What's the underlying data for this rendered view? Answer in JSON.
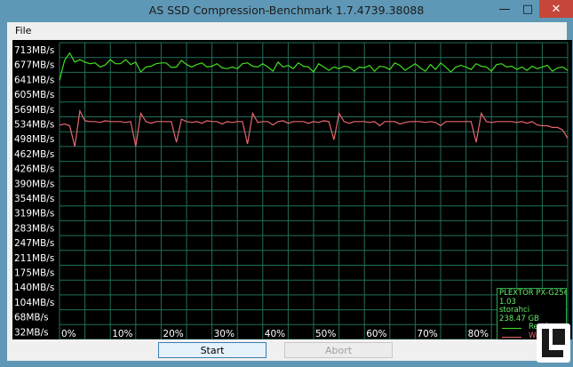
{
  "window": {
    "title": "AS SSD Compression-Benchmark 1.7.4739.38088"
  },
  "menu": {
    "file_label": "File"
  },
  "buttons": {
    "start_label": "Start",
    "abort_label": "Abort"
  },
  "device": {
    "name": "PLEXTOR PX-G256",
    "firmware": "1.03",
    "driver": "storahci",
    "size": "238.47 GB"
  },
  "legend": {
    "read_label": "Read",
    "write_label": "Write"
  },
  "colors": {
    "read": "#44dd22",
    "write": "#e8666e",
    "grid": "#1f6f5a",
    "background": "#000000"
  },
  "chart_data": {
    "type": "line",
    "ylabels": [
      "713MB/s",
      "677MB/s",
      "641MB/s",
      "605MB/s",
      "569MB/s",
      "534MB/s",
      "498MB/s",
      "462MB/s",
      "426MB/s",
      "390MB/s",
      "354MB/s",
      "319MB/s",
      "283MB/s",
      "247MB/s",
      "211MB/s",
      "175MB/s",
      "140MB/s",
      "104MB/s",
      "68MB/s",
      "32MB/s"
    ],
    "xlabels": [
      "0%",
      "10%",
      "20%",
      "30%",
      "40%",
      "50%",
      "60%",
      "70%",
      "80%"
    ],
    "xlim": [
      0,
      100
    ],
    "ylim": [
      13,
      731
    ],
    "series": [
      {
        "name": "Read",
        "x": [
          0,
          1,
          2,
          3,
          4,
          5,
          6,
          7,
          8,
          9,
          10,
          11,
          12,
          13,
          14,
          15,
          16,
          17,
          18,
          19,
          20,
          21,
          22,
          23,
          24,
          25,
          26,
          27,
          28,
          29,
          30,
          31,
          32,
          33,
          34,
          35,
          36,
          37,
          38,
          39,
          40,
          41,
          42,
          43,
          44,
          45,
          46,
          47,
          48,
          49,
          50,
          51,
          52,
          53,
          54,
          55,
          56,
          57,
          58,
          59,
          60,
          61,
          62,
          63,
          64,
          65,
          66,
          67,
          68,
          69,
          70,
          71,
          72,
          73,
          74,
          75,
          76,
          77,
          78,
          79,
          80,
          81,
          82,
          83,
          84,
          85,
          86,
          87,
          88,
          89,
          90,
          91,
          92,
          93,
          94,
          95,
          96,
          97,
          98,
          99,
          100
        ],
        "values": [
          640,
          688,
          706,
          684,
          690,
          684,
          680,
          682,
          672,
          677,
          690,
          680,
          680,
          690,
          678,
          684,
          660,
          672,
          674,
          680,
          682,
          682,
          671,
          672,
          688,
          678,
          672,
          678,
          682,
          672,
          674,
          680,
          670,
          668,
          672,
          668,
          680,
          682,
          674,
          672,
          680,
          672,
          662,
          684,
          672,
          676,
          668,
          682,
          674,
          672,
          660,
          680,
          672,
          664,
          672,
          668,
          674,
          672,
          662,
          672,
          670,
          676,
          662,
          674,
          672,
          666,
          682,
          676,
          664,
          672,
          680,
          670,
          662,
          678,
          666,
          682,
          672,
          660,
          672,
          676,
          672,
          666,
          680,
          674,
          672,
          662,
          678,
          680,
          672,
          674,
          666,
          672,
          664,
          674,
          668,
          672,
          676,
          662,
          670,
          672,
          664
        ]
      },
      {
        "name": "Write",
        "x": [
          0,
          1,
          2,
          3,
          4,
          5,
          6,
          7,
          8,
          9,
          10,
          11,
          12,
          13,
          14,
          15,
          16,
          17,
          18,
          19,
          20,
          21,
          22,
          23,
          24,
          25,
          26,
          27,
          28,
          29,
          30,
          31,
          32,
          33,
          34,
          35,
          36,
          37,
          38,
          39,
          40,
          41,
          42,
          43,
          44,
          45,
          46,
          47,
          48,
          49,
          50,
          51,
          52,
          53,
          54,
          55,
          56,
          57,
          58,
          59,
          60,
          61,
          62,
          63,
          64,
          65,
          66,
          67,
          68,
          69,
          70,
          71,
          72,
          73,
          74,
          75,
          76,
          77,
          78,
          79,
          80,
          81,
          82,
          83,
          84,
          85,
          86,
          87,
          88,
          89,
          90,
          91,
          92,
          93,
          94,
          95,
          96,
          97,
          98,
          99,
          100
        ],
        "values": [
          532,
          534,
          530,
          480,
          566,
          542,
          540,
          540,
          538,
          542,
          540,
          540,
          540,
          538,
          540,
          480,
          560,
          540,
          536,
          540,
          540,
          540,
          540,
          490,
          546,
          540,
          538,
          540,
          536,
          542,
          540,
          540,
          534,
          540,
          538,
          540,
          540,
          486,
          560,
          538,
          540,
          540,
          532,
          540,
          542,
          536,
          540,
          540,
          540,
          536,
          540,
          538,
          542,
          540,
          496,
          560,
          540,
          536,
          540,
          540,
          540,
          538,
          540,
          530,
          540,
          540,
          540,
          534,
          538,
          540,
          540,
          540,
          538,
          540,
          538,
          530,
          540,
          540,
          540,
          540,
          540,
          540,
          490,
          560,
          540,
          538,
          540,
          540,
          540,
          540,
          538,
          540,
          536,
          540,
          532,
          530,
          530,
          526,
          526,
          520,
          500
        ]
      }
    ]
  }
}
